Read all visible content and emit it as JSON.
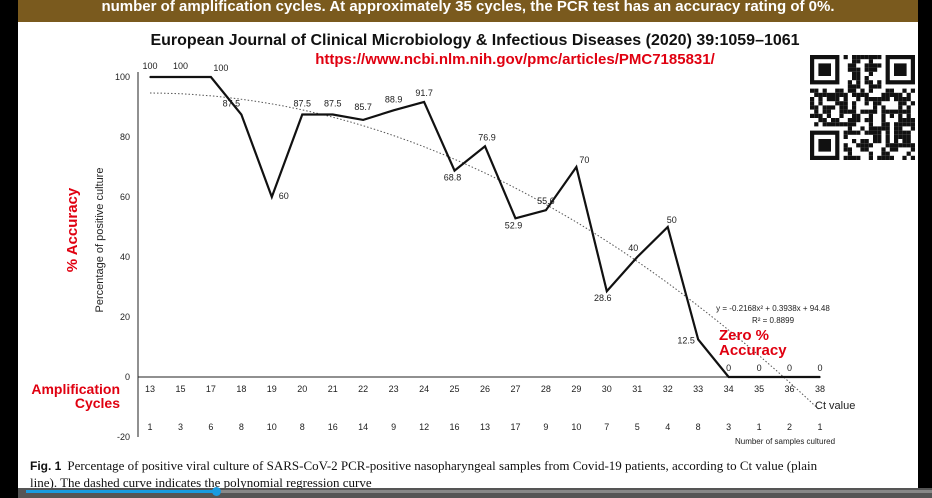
{
  "banner": "number of amplification cycles. At approximately 35 cycles, the PCR test has an accuracy rating of 0%.",
  "journal": "European Journal of Clinical Microbiology & Infectious Diseases (2020) 39:1059–1061",
  "url": "https://www.ncbi.nlm.nih.gov/pmc/articles/PMC7185831/",
  "annotations": {
    "accuracy_label": "% Accuracy",
    "cycles_label_1": "Amplification",
    "cycles_label_2": "Cycles",
    "zero_1": "Zero %",
    "zero_2": "Accuracy"
  },
  "caption": {
    "fig": "Fig. 1",
    "line1": "Percentage of positive viral culture of SARS-CoV-2 PCR-positive nasopharyngeal samples from Covid-19 patients, according to Ct value (plain",
    "line2": "line). The dashed curve indicates the polynomial regression curve"
  },
  "video": {
    "progress": 0.21
  },
  "chart_data": {
    "type": "line",
    "ylabel": "Percentage of positive culture",
    "xlabel": "Ct value",
    "samples_label": "Number of samples cultured",
    "ylim": [
      -20,
      100
    ],
    "yticks": [
      -20,
      0,
      20,
      40,
      60,
      80,
      100
    ],
    "x": [
      13,
      15,
      17,
      18,
      19,
      20,
      21,
      22,
      23,
      24,
      25,
      26,
      27,
      28,
      29,
      30,
      31,
      32,
      33,
      34,
      35,
      36,
      38
    ],
    "values": [
      100,
      100,
      100,
      87.5,
      60,
      87.5,
      87.5,
      85.7,
      88.9,
      91.7,
      68.8,
      76.9,
      52.9,
      55.6,
      70,
      28.6,
      40,
      50,
      12.5,
      0,
      0,
      0,
      0
    ],
    "samples": [
      1,
      3,
      6,
      8,
      10,
      8,
      16,
      14,
      9,
      12,
      16,
      13,
      17,
      9,
      10,
      7,
      5,
      4,
      8,
      3,
      1,
      2,
      1
    ],
    "regression": {
      "equation": "y = -0.2168x² + 0.3938x + 94.48",
      "r2": "R² = 0.8899",
      "a": -0.2168,
      "b": 0.3938,
      "c": 94.48
    }
  }
}
